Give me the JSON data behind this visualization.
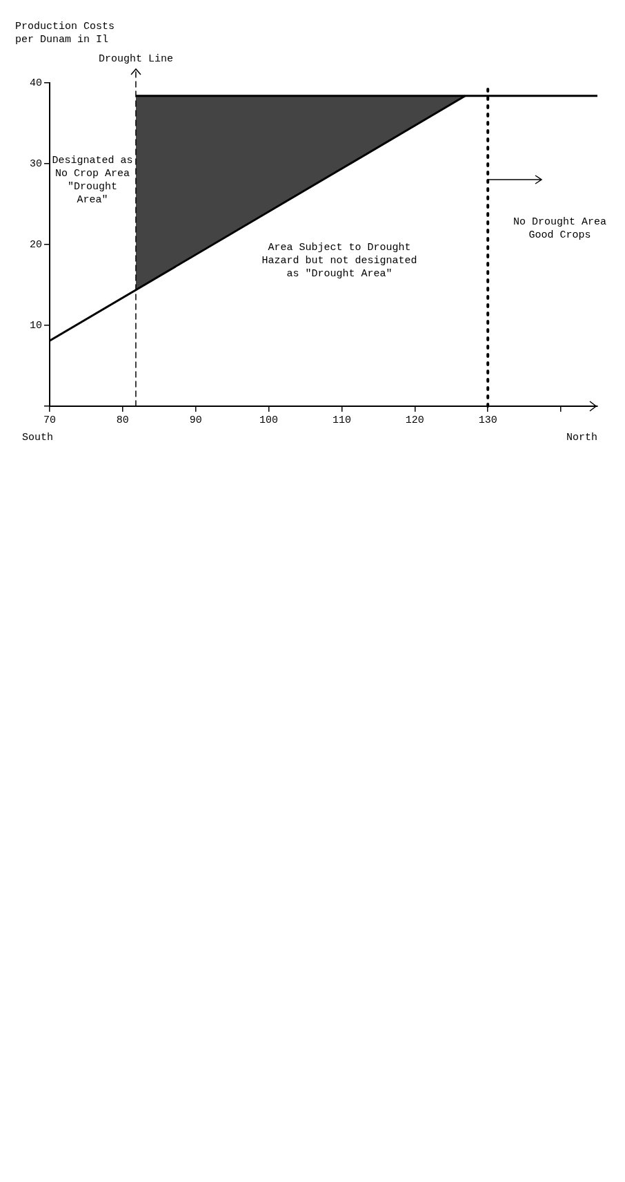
{
  "chart_data": {
    "type": "line",
    "ylabel": "Production Costs\nper Dunam in Il",
    "xlim": [
      70,
      145
    ],
    "xticks": [
      70,
      80,
      90,
      100,
      110,
      120,
      130,
      {
        "value": 140,
        "label": null
      }
    ],
    "ylim": [
      0,
      40
    ],
    "yticks": [
      {
        "value": 0,
        "label": null
      },
      10,
      20,
      30,
      40
    ],
    "grid": false,
    "legend": false,
    "marker": "none",
    "series": [
      {
        "type": "line",
        "color": "#000000",
        "x": [
          70,
          126.9
        ],
        "values": [
          8.1,
          38.4
        ]
      },
      {
        "type": "line",
        "color": "#000000",
        "x": [
          81.8,
          126.9,
          145
        ],
        "values": [
          38.4,
          38.4,
          38.4
        ],
        "lower": [
          14.4,
          38.4,
          null
        ],
        "upper": [
          38.4,
          38.4,
          null
        ]
      }
    ],
    "ref_lines": [
      {
        "axis": "x",
        "value": 81.8,
        "label": "Drought Line",
        "line_style": "dashed"
      },
      {
        "axis": "x",
        "value": 130,
        "line_style": "dotted"
      }
    ],
    "annotations": [
      "South",
      "North",
      "Designated as\nNo Crop Area\n\"Drought\nArea\"",
      "Area Subject to Drought\nHazard but not designated\nas \"Drought Area\"",
      "No Drought Area\nGood Crops"
    ]
  }
}
